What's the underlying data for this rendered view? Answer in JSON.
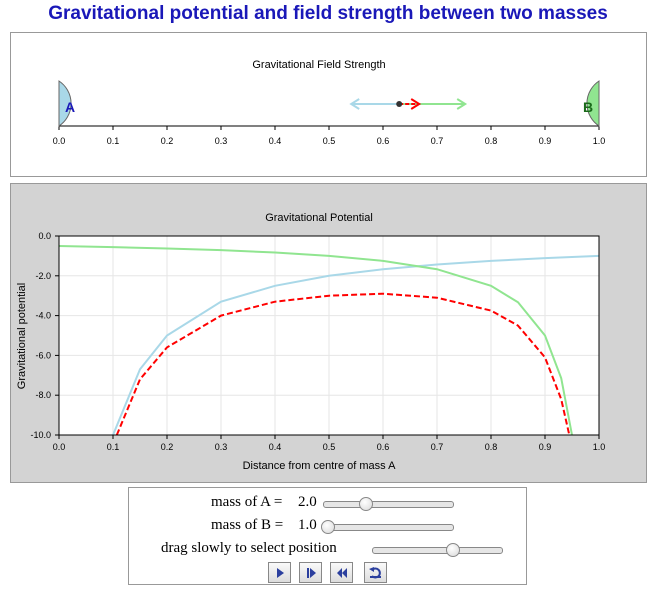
{
  "page_title": "Gravitational potential and field strength between two masses",
  "field_chart": {
    "title": "Gravitational Field Strength",
    "mass_a_label": "A",
    "mass_b_label": "B",
    "ticks": [
      "0.0",
      "0.1",
      "0.2",
      "0.3",
      "0.4",
      "0.5",
      "0.6",
      "0.7",
      "0.8",
      "0.9",
      "1.0"
    ],
    "position": 0.63,
    "colors": {
      "mass_a": "#a9d8e8",
      "mass_b": "#90e590",
      "total": "#ff0000"
    }
  },
  "chart_data": {
    "type": "line",
    "title": "Gravitational Potential",
    "xlabel": "Distance from centre of mass A",
    "ylabel": "Gravitational potential",
    "xlim": [
      0.0,
      1.0
    ],
    "ylim": [
      -10.0,
      0.0
    ],
    "x_ticks": [
      "0.0",
      "0.1",
      "0.2",
      "0.3",
      "0.4",
      "0.5",
      "0.6",
      "0.7",
      "0.8",
      "0.9",
      "1.0"
    ],
    "y_ticks": [
      "0.0",
      "-2.0",
      "-4.0",
      "-6.0",
      "-8.0",
      "-10.0"
    ],
    "grid": true,
    "series": [
      {
        "color": "#a9d8e8",
        "style": "solid",
        "x": [
          0.1,
          0.15,
          0.2,
          0.3,
          0.4,
          0.5,
          0.6,
          0.7,
          0.8,
          0.9,
          1.0
        ],
        "values": [
          -10.0,
          -6.7,
          -5.0,
          -3.3,
          -2.5,
          -2.0,
          -1.67,
          -1.43,
          -1.25,
          -1.11,
          -1.0
        ]
      },
      {
        "color": "#90e590",
        "style": "solid",
        "x": [
          0.0,
          0.1,
          0.2,
          0.3,
          0.4,
          0.5,
          0.6,
          0.7,
          0.8,
          0.85,
          0.9,
          0.93,
          0.95
        ],
        "values": [
          -0.5,
          -0.56,
          -0.63,
          -0.71,
          -0.83,
          -1.0,
          -1.25,
          -1.67,
          -2.5,
          -3.33,
          -5.0,
          -7.14,
          -10.0
        ]
      },
      {
        "color": "#ff0000",
        "style": "dashed",
        "x": [
          0.107,
          0.15,
          0.2,
          0.3,
          0.4,
          0.5,
          0.6,
          0.7,
          0.8,
          0.85,
          0.9,
          0.93,
          0.945
        ],
        "values": [
          -10.0,
          -7.2,
          -5.6,
          -4.0,
          -3.3,
          -3.0,
          -2.9,
          -3.1,
          -3.75,
          -4.5,
          -6.1,
          -8.2,
          -10.0
        ]
      }
    ]
  },
  "controls": {
    "mass_a_label": "mass of A =",
    "mass_a_value": "2.0",
    "mass_a_fraction": 0.33,
    "mass_b_label": "mass of B =",
    "mass_b_value": "1.0",
    "mass_b_fraction": 0.0,
    "drag_label": "drag slowly to select position",
    "position_fraction": 0.63,
    "buttons": [
      "play-icon",
      "step-forward-icon",
      "rewind-icon",
      "reset-icon"
    ]
  }
}
